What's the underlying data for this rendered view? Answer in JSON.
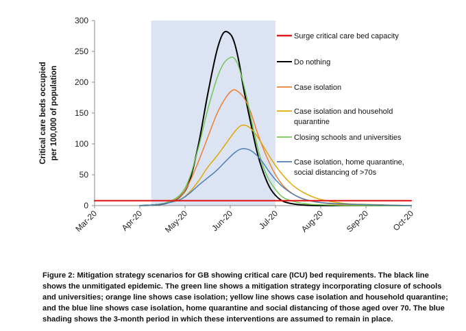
{
  "chart_data": {
    "type": "line",
    "title": "",
    "xlabel": "",
    "ylabel": "Critical care beds occupied per 100,000 of population",
    "ylabel_lines": [
      "Critical care beds occupied",
      "per 100,000 of population"
    ],
    "x_ticks": [
      "Mar-20",
      "Apr-20",
      "May-20",
      "Jun-20",
      "Jul-20",
      "Aug-20",
      "Sep-20",
      "Oct-20"
    ],
    "y_ticks": [
      "0",
      "50",
      "100",
      "150",
      "200",
      "250",
      "300"
    ],
    "ylim": [
      0,
      300
    ],
    "xlim": [
      0,
      7
    ],
    "grid": false,
    "legend_position": "right",
    "shaded_period": {
      "from": 1.25,
      "to": 4.0,
      "color": "#dce3f3"
    },
    "series": [
      {
        "name": "Surge critical care bed capacity",
        "color": "#e31a1c",
        "width": 2.2,
        "legend_lines": [
          "Surge critical care bed capacity"
        ],
        "x": [
          0,
          7
        ],
        "y": [
          8,
          8
        ]
      },
      {
        "name": "Do nothing",
        "color": "#000000",
        "width": 2,
        "legend_lines": [
          "Do nothing"
        ],
        "x": [
          1.0,
          1.3,
          1.6,
          1.9,
          2.1,
          2.3,
          2.5,
          2.7,
          2.85,
          3.0,
          3.1,
          3.2,
          3.3,
          3.45,
          3.6,
          3.75,
          3.9,
          4.1,
          4.3,
          4.6,
          5.0,
          5.5,
          6.0,
          7.0
        ],
        "y": [
          0,
          1,
          4,
          15,
          40,
          100,
          180,
          250,
          280,
          278,
          262,
          230,
          188,
          135,
          85,
          50,
          26,
          10,
          4,
          1,
          0,
          0,
          0,
          0
        ]
      },
      {
        "name": "Case isolation",
        "color": "#ed7d31",
        "width": 1.5,
        "legend_lines": [
          "Case isolation"
        ],
        "x": [
          1.0,
          1.3,
          1.6,
          1.9,
          2.1,
          2.3,
          2.5,
          2.7,
          2.9,
          3.05,
          3.15,
          3.3,
          3.45,
          3.6,
          3.8,
          4.0,
          4.2,
          4.5,
          4.8,
          5.2,
          5.6,
          6.0,
          6.5,
          7.0
        ],
        "y": [
          0,
          1,
          5,
          15,
          38,
          72,
          110,
          148,
          175,
          187,
          186,
          175,
          152,
          118,
          80,
          50,
          30,
          14,
          7,
          3,
          1,
          1,
          0,
          0
        ]
      },
      {
        "name": "Case isolation and household quarantine",
        "color": "#e0a800",
        "width": 1.5,
        "legend_lines": [
          "Case isolation and household",
          "quarantine"
        ],
        "x": [
          1.0,
          1.3,
          1.6,
          1.9,
          2.1,
          2.3,
          2.5,
          2.7,
          2.9,
          3.1,
          3.25,
          3.4,
          3.55,
          3.7,
          3.9,
          4.1,
          4.35,
          4.6,
          4.9,
          5.2,
          5.6,
          6.0,
          6.5,
          7.0
        ],
        "y": [
          0,
          1,
          4,
          10,
          22,
          40,
          62,
          80,
          100,
          120,
          130,
          128,
          117,
          100,
          76,
          55,
          35,
          22,
          12,
          7,
          3,
          2,
          1,
          0
        ]
      },
      {
        "name": "Closing schools and universities",
        "color": "#70c850",
        "width": 1.5,
        "legend_lines": [
          "Closing schools and universities"
        ],
        "x": [
          1.0,
          1.3,
          1.6,
          1.9,
          2.1,
          2.3,
          2.5,
          2.7,
          2.85,
          3.0,
          3.1,
          3.2,
          3.35,
          3.5,
          3.65,
          3.8,
          4.0,
          4.2,
          4.5,
          4.8,
          5.2,
          5.6,
          6.0,
          7.0
        ],
        "y": [
          0,
          1,
          5,
          18,
          45,
          95,
          155,
          205,
          230,
          240,
          238,
          222,
          180,
          128,
          82,
          50,
          26,
          12,
          5,
          2,
          1,
          0,
          0,
          0
        ]
      },
      {
        "name": "Case isolation, home quarantine, social distancing of >70s",
        "color": "#4a7fb5",
        "width": 1.5,
        "legend_lines": [
          "Case isolation, home quarantine,",
          "social distancing of >70s"
        ],
        "x": [
          1.0,
          1.3,
          1.6,
          1.9,
          2.1,
          2.3,
          2.5,
          2.7,
          2.9,
          3.1,
          3.25,
          3.4,
          3.55,
          3.7,
          3.85,
          4.0,
          4.2,
          4.45,
          4.7,
          5.0,
          5.4,
          5.8,
          6.3,
          7.0
        ],
        "y": [
          0,
          1,
          4,
          10,
          20,
          33,
          45,
          57,
          72,
          86,
          92,
          91,
          84,
          72,
          56,
          42,
          28,
          16,
          9,
          5,
          3,
          2,
          1,
          0
        ]
      }
    ]
  },
  "caption": "Figure 2: Mitigation strategy scenarios for GB showing critical care (ICU) bed requirements. The black line shows the unmitigated epidemic. The green line shows a mitigation strategy incorporating closure of schools and universities; orange line shows case isolation; yellow line shows case isolation and household quarantine; and the blue line shows case isolation, home quarantine and social distancing of those aged over 70. The blue shading shows the 3-month period in which these interventions are assumed to remain in place."
}
